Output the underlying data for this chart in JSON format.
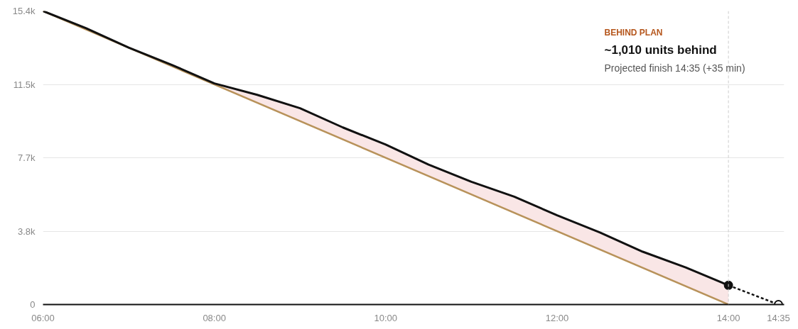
{
  "chart_data": {
    "type": "line",
    "annotations": [
      "BEHIND PLAN",
      "~1,010 units behind",
      "Projected finish 14:35 (+35 min)"
    ],
    "xlim": [
      6,
      14.65
    ],
    "ylim": [
      0,
      15400
    ],
    "xticks": [
      {
        "value": 6,
        "label": "06:00"
      },
      {
        "value": 8,
        "label": "08:00"
      },
      {
        "value": 10,
        "label": "10:00"
      },
      {
        "value": 12,
        "label": "12:00"
      },
      {
        "value": 14,
        "label": "14:00"
      },
      {
        "value": 14.5833,
        "label": "14:35"
      }
    ],
    "yticks": [
      0,
      {
        "value": 3850,
        "label": "3.8k"
      },
      {
        "value": 7700,
        "label": "7.7k"
      },
      {
        "value": 11550,
        "label": "11.5k"
      },
      {
        "value": 15400,
        "label": "15.4k"
      }
    ],
    "grid": "y",
    "line_style": "solid",
    "ref_lines": [
      {
        "axis": "x",
        "value": 14,
        "label": null,
        "color": "#cccccc",
        "line_style": "dashed"
      }
    ],
    "series": [
      {
        "color": "#b8925a",
        "x": [
          6,
          14
        ],
        "values": [
          15400,
          0
        ]
      },
      {
        "color": "#111111",
        "x": [
          6,
          6.5,
          7,
          7.5,
          8,
          8.5,
          9,
          9.5,
          10,
          10.5,
          11,
          11.5,
          12,
          12.5,
          13,
          13.5,
          14
        ],
        "values": [
          15400,
          14500,
          13480,
          12580,
          11600,
          11000,
          10300,
          9290,
          8390,
          7340,
          6440,
          5660,
          4680,
          3780,
          2770,
          1950,
          1010
        ],
        "lower": [
          15400,
          14438,
          13475,
          12513,
          11550,
          10588,
          9625,
          8663,
          7700,
          6738,
          5775,
          4813,
          3850,
          2888,
          1925,
          963,
          0
        ],
        "upper": [
          15400,
          14500,
          13480,
          12580,
          11600,
          11000,
          10300,
          9290,
          8390,
          7340,
          6440,
          5660,
          4680,
          3780,
          2770,
          1950,
          1010
        ]
      },
      {
        "color": "#111111",
        "line_style": "dashed",
        "marker": "circle",
        "x": [
          14,
          14.5833
        ],
        "values": [
          1010,
          0
        ]
      }
    ]
  }
}
